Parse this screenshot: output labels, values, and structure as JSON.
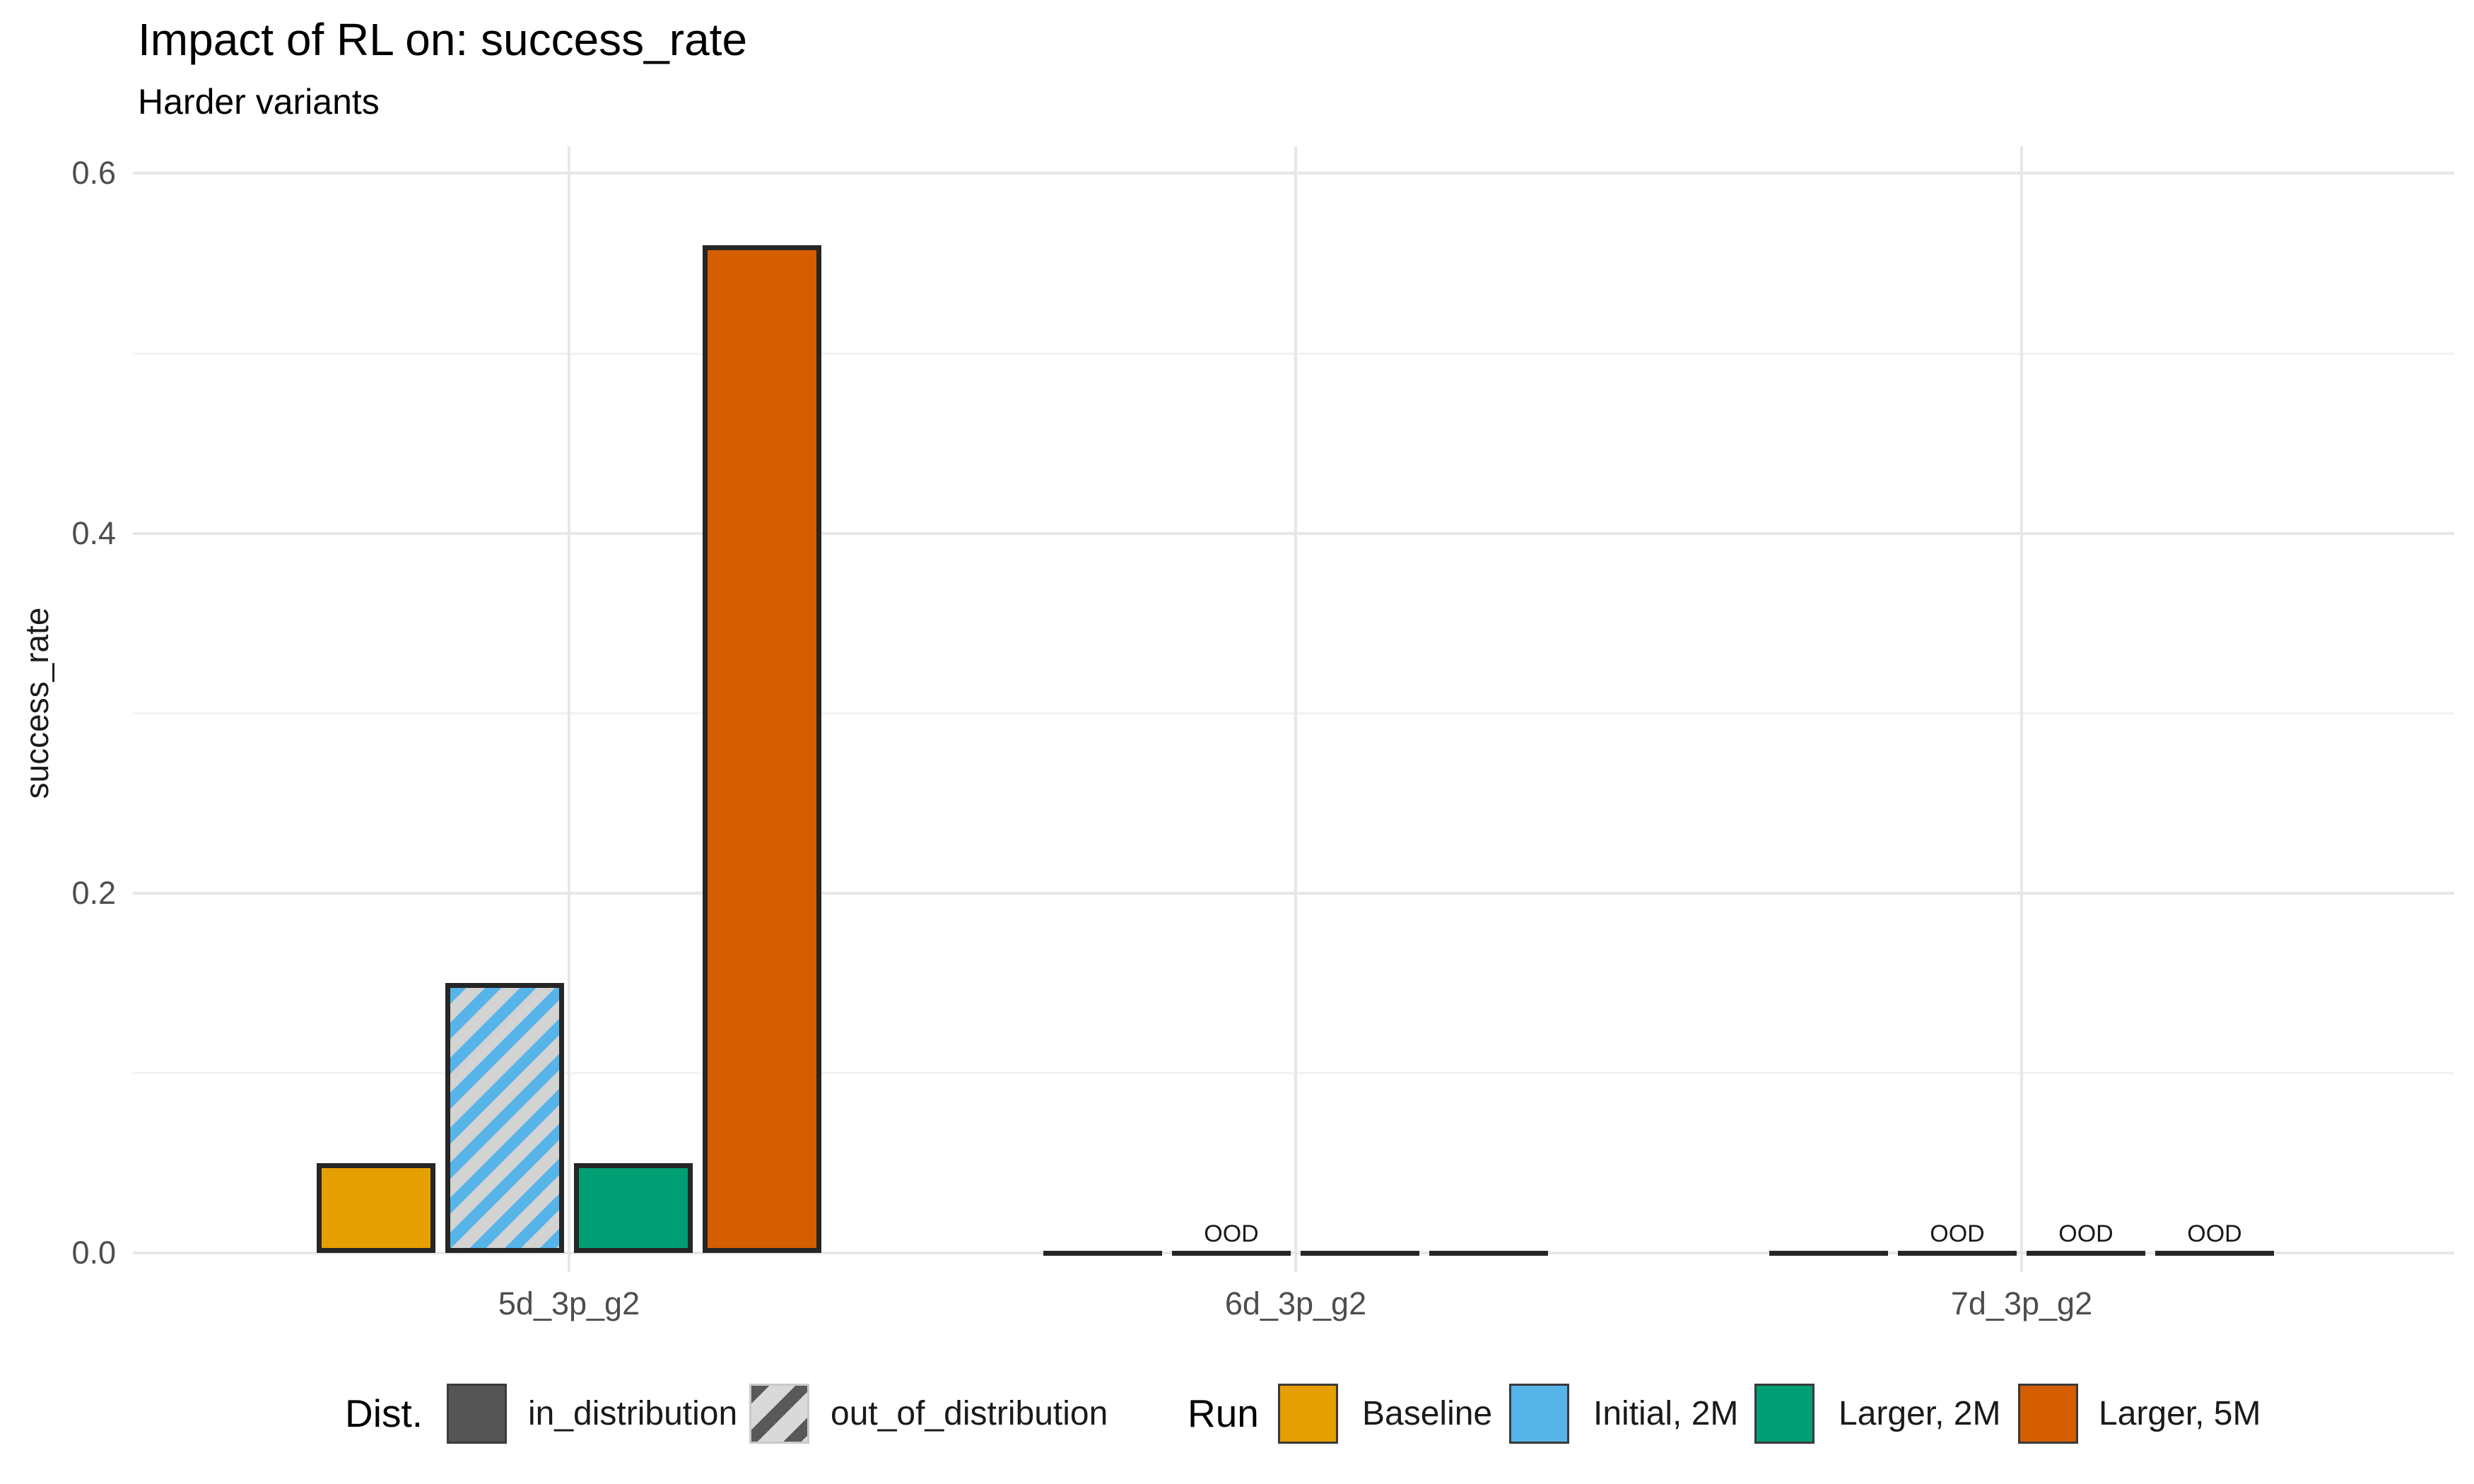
{
  "title": "Impact of RL on: success_rate",
  "subtitle": "Harder variants",
  "y_axis": {
    "label": "success_rate",
    "ticks": [
      "0.0",
      "0.2",
      "0.4",
      "0.6"
    ],
    "tick_values": [
      0.0,
      0.2,
      0.4,
      0.6
    ],
    "minor_values": [
      0.1,
      0.3,
      0.5
    ]
  },
  "x_axis": {
    "categories": [
      "5d_3p_g2",
      "6d_3p_g2",
      "7d_3p_g2"
    ]
  },
  "ood_marker_text": "OOD",
  "colors": {
    "bar_border": "#262626",
    "hatch_background": "#D3D3D3",
    "grid_major": "#E7E7E7",
    "grid_minor": "#F2F2F2",
    "tick_text": "#4d4d4d",
    "text": "#1a1a1a"
  },
  "legend": {
    "dist": {
      "title": "Dist.",
      "items": [
        {
          "label": "in_distribution",
          "pattern": "solid",
          "color": "#555555"
        },
        {
          "label": "out_of_distribution",
          "pattern": "stripe",
          "color": "#595959",
          "stripe_color": "#D9D9D9"
        }
      ]
    },
    "run": {
      "title": "Run",
      "items": [
        {
          "label": "Baseline",
          "color": "#E69F00"
        },
        {
          "label": "Initial, 2M",
          "color": "#56B4E9"
        },
        {
          "label": "Larger, 2M",
          "color": "#009E73"
        },
        {
          "label": "Larger, 5M",
          "color": "#D55E00"
        }
      ]
    }
  },
  "chart_data": {
    "type": "bar",
    "title": "Impact of RL on: success_rate",
    "subtitle": "Harder variants",
    "xlabel": "",
    "ylabel": "success_rate",
    "ylim": [
      0.0,
      0.6
    ],
    "grid": true,
    "legend_position": "bottom",
    "categories": [
      "5d_3p_g2",
      "6d_3p_g2",
      "7d_3p_g2"
    ],
    "series": [
      {
        "name": "Baseline",
        "color": "#E69F00",
        "values": [
          0.05,
          0.0,
          0.0
        ],
        "distribution": [
          "in_distribution",
          "in_distribution",
          "in_distribution"
        ]
      },
      {
        "name": "Initial, 2M",
        "color": "#56B4E9",
        "values": [
          0.15,
          0.0,
          0.0
        ],
        "distribution": [
          "out_of_distribution",
          "out_of_distribution",
          "out_of_distribution"
        ]
      },
      {
        "name": "Larger, 2M",
        "color": "#009E73",
        "values": [
          0.05,
          0.0,
          0.0
        ],
        "distribution": [
          "in_distribution",
          "in_distribution",
          "out_of_distribution"
        ]
      },
      {
        "name": "Larger, 5M",
        "color": "#D55E00",
        "values": [
          0.56,
          0.0,
          0.0
        ],
        "distribution": [
          "in_distribution",
          "in_distribution",
          "out_of_distribution"
        ]
      }
    ],
    "annotations": "Bars with value 0 that are out_of_distribution carry an OOD text marker; non-zero out_of_distribution bars are drawn with diagonal stripe hatching"
  }
}
